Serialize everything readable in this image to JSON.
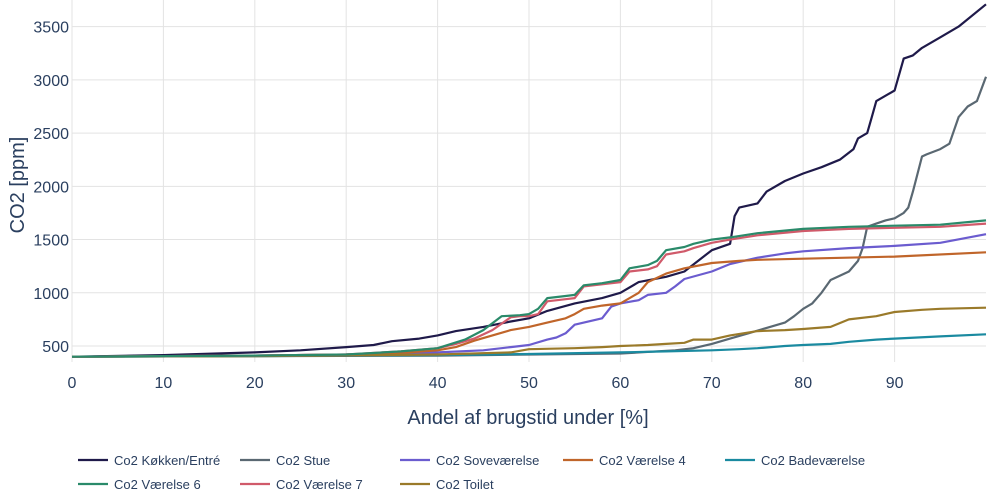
{
  "chart_data": {
    "type": "line",
    "xlabel": "Andel af brugstid under [%]",
    "ylabel": "CO2 [ppm]",
    "xlim": [
      0,
      100
    ],
    "ylim": [
      350,
      3750
    ],
    "xticks": [
      0,
      10,
      20,
      30,
      40,
      50,
      60,
      70,
      80,
      90
    ],
    "yticks": [
      500,
      1000,
      1500,
      2000,
      2500,
      3000,
      3500
    ],
    "grid": true,
    "legend_position": "bottom",
    "series": [
      {
        "name": "Co2 Køkken/Entré",
        "color": "#1f1a4a",
        "x": [
          0,
          10,
          20,
          25,
          30,
          33,
          35,
          38,
          40,
          42,
          45,
          48,
          50,
          52,
          55,
          58,
          60,
          62,
          65,
          67,
          70,
          72,
          72.5,
          73,
          75,
          76,
          78,
          80,
          82,
          84,
          85.5,
          86,
          87,
          87.5,
          88,
          90,
          91,
          92,
          93,
          95,
          97,
          100
        ],
        "y": [
          400,
          415,
          440,
          460,
          490,
          510,
          545,
          570,
          600,
          640,
          680,
          730,
          760,
          830,
          900,
          950,
          1000,
          1100,
          1150,
          1200,
          1400,
          1460,
          1720,
          1800,
          1840,
          1950,
          2050,
          2120,
          2180,
          2250,
          2350,
          2450,
          2500,
          2650,
          2800,
          2900,
          3200,
          3230,
          3300,
          3400,
          3500,
          3710
        ]
      },
      {
        "name": "Co2 Stue",
        "color": "#5a6872",
        "x": [
          0,
          20,
          40,
          60,
          66,
          68,
          70,
          72,
          74,
          76,
          78,
          79,
          80,
          81,
          82,
          83,
          84,
          85,
          86,
          86.5,
          87,
          88,
          89,
          90,
          91,
          91.5,
          92,
          93,
          93.5,
          95,
          96,
          97,
          97.3,
          98,
          99,
          100
        ],
        "y": [
          400,
          405,
          410,
          430,
          460,
          480,
          520,
          570,
          620,
          670,
          720,
          780,
          850,
          900,
          1000,
          1120,
          1160,
          1200,
          1300,
          1420,
          1620,
          1650,
          1680,
          1700,
          1750,
          1800,
          1950,
          2280,
          2300,
          2350,
          2400,
          2650,
          2680,
          2750,
          2800,
          3030
        ]
      },
      {
        "name": "Co2 Soveværelse",
        "color": "#6b5ccf",
        "x": [
          0,
          20,
          30,
          40,
          45,
          48,
          50,
          52,
          53,
          54,
          55,
          56,
          58,
          59,
          60,
          62,
          63,
          65,
          66,
          67,
          70,
          72,
          75,
          78,
          80,
          85,
          90,
          95,
          100
        ],
        "y": [
          400,
          410,
          420,
          440,
          460,
          490,
          510,
          560,
          580,
          620,
          700,
          720,
          760,
          870,
          900,
          930,
          980,
          1000,
          1060,
          1130,
          1200,
          1270,
          1330,
          1370,
          1390,
          1420,
          1440,
          1470,
          1550
        ]
      },
      {
        "name": "Co2 Værelse 4",
        "color": "#c0652a",
        "x": [
          0,
          20,
          30,
          35,
          40,
          42,
          44,
          46,
          48,
          50,
          52,
          54,
          55,
          56,
          58,
          60,
          62,
          63,
          65,
          67,
          70,
          73,
          75,
          80,
          90,
          100
        ],
        "y": [
          400,
          410,
          420,
          430,
          460,
          490,
          550,
          600,
          650,
          680,
          720,
          760,
          800,
          850,
          880,
          900,
          1000,
          1100,
          1180,
          1230,
          1280,
          1300,
          1310,
          1320,
          1340,
          1380
        ]
      },
      {
        "name": "Co2 Badeværelse",
        "color": "#1a8aa0",
        "x": [
          0,
          20,
          40,
          50,
          60,
          65,
          70,
          73,
          75,
          78,
          80,
          83,
          85,
          88,
          90,
          95,
          100
        ],
        "y": [
          400,
          405,
          415,
          425,
          440,
          450,
          460,
          470,
          480,
          500,
          510,
          520,
          540,
          560,
          570,
          590,
          610
        ]
      },
      {
        "name": "Co2 Værelse 6",
        "color": "#2a8a6a",
        "x": [
          0,
          20,
          30,
          36,
          40,
          43,
          45,
          47,
          49,
          50,
          51,
          52,
          54,
          55,
          56,
          58,
          60,
          61,
          63,
          64,
          65,
          67,
          68,
          70,
          72,
          75,
          80,
          85,
          90,
          95,
          100
        ],
        "y": [
          400,
          410,
          420,
          450,
          480,
          560,
          650,
          780,
          790,
          800,
          850,
          950,
          970,
          980,
          1070,
          1090,
          1120,
          1230,
          1260,
          1300,
          1400,
          1430,
          1460,
          1500,
          1520,
          1560,
          1600,
          1620,
          1630,
          1640,
          1680
        ]
      },
      {
        "name": "Co2 Værelse 7",
        "color": "#d05a6a",
        "x": [
          0,
          20,
          30,
          36,
          40,
          42,
          44,
          46,
          48,
          49,
          50,
          51,
          52,
          54,
          55,
          56,
          58,
          60,
          61,
          63,
          64,
          65,
          67,
          68,
          70,
          72,
          75,
          80,
          85,
          90,
          95,
          100
        ],
        "y": [
          400,
          410,
          420,
          450,
          480,
          520,
          570,
          650,
          770,
          780,
          780,
          800,
          920,
          940,
          950,
          1060,
          1080,
          1100,
          1200,
          1220,
          1250,
          1360,
          1390,
          1420,
          1470,
          1500,
          1540,
          1580,
          1600,
          1610,
          1620,
          1650
        ]
      },
      {
        "name": "Co2 Toilet",
        "color": "#9a7a2a",
        "x": [
          0,
          20,
          40,
          48,
          50,
          55,
          58,
          60,
          63,
          65,
          67,
          68,
          70,
          72,
          75,
          78,
          80,
          83,
          85,
          88,
          90,
          93,
          95,
          100
        ],
        "y": [
          400,
          405,
          420,
          440,
          470,
          480,
          490,
          500,
          510,
          520,
          530,
          560,
          560,
          600,
          640,
          650,
          660,
          680,
          750,
          780,
          820,
          840,
          850,
          860
        ]
      }
    ]
  }
}
